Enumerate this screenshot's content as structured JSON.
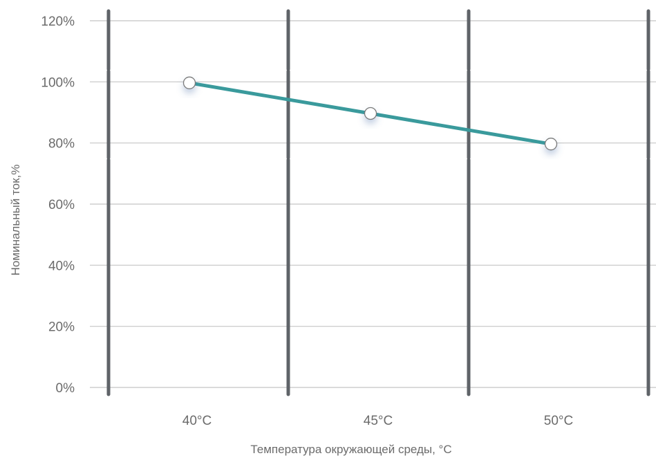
{
  "chart_data": {
    "type": "line",
    "title": "",
    "xlabel": "Температура окружающей среды, °С",
    "ylabel": "Номинальный ток,%",
    "categories": [
      "40°C",
      "45°C",
      "50°C"
    ],
    "y_ticks": [
      "0%",
      "20%",
      "40%",
      "60%",
      "80%",
      "100%",
      "120%"
    ],
    "ylim": [
      0,
      120
    ],
    "grid": true,
    "series": [
      {
        "values": [
          100,
          90,
          80
        ]
      }
    ],
    "colors": {
      "line": "#3a9a9c",
      "marker_fill": "#ffffff",
      "marker_stroke": "#7a7a7a",
      "grid": "#c4c4c4",
      "divider": "#5f6368",
      "text": "#6b6b6b"
    }
  }
}
